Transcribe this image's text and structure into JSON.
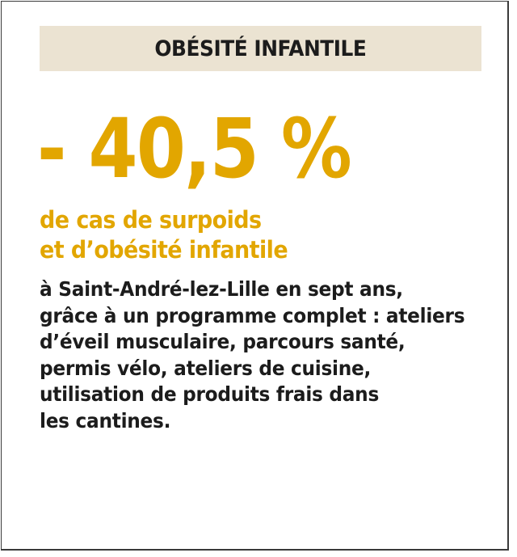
{
  "header": {
    "title": "OBÉSITÉ INFANTILE"
  },
  "stat": {
    "value": "- 40,5 %"
  },
  "subhead": {
    "lines": [
      "de cas de surpoids",
      "et d’obésité infantile"
    ]
  },
  "body": {
    "lines": [
      "à Saint-André-lez-Lille en sept ans,",
      "grâce à un programme complet : ateliers",
      "d’éveil musculaire, parcours santé,",
      "permis vélo, ateliers de cuisine,",
      "utilisation de produits frais dans",
      "les cantines."
    ]
  },
  "colors": {
    "accent": "#e2a600",
    "header_background": "#ebe3d2",
    "text": "#1c1c1c"
  }
}
